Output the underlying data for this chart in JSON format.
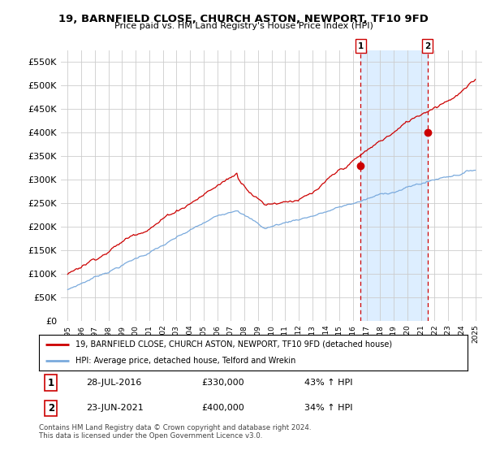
{
  "title": "19, BARNFIELD CLOSE, CHURCH ASTON, NEWPORT, TF10 9FD",
  "subtitle": "Price paid vs. HM Land Registry's House Price Index (HPI)",
  "ylabel_ticks": [
    "£0",
    "£50K",
    "£100K",
    "£150K",
    "£200K",
    "£250K",
    "£300K",
    "£350K",
    "£400K",
    "£450K",
    "£500K",
    "£550K"
  ],
  "ylabel_values": [
    0,
    50000,
    100000,
    150000,
    200000,
    250000,
    300000,
    350000,
    400000,
    450000,
    500000,
    550000
  ],
  "ylim": [
    0,
    575000
  ],
  "xlim_start": 1994.5,
  "xlim_end": 2025.5,
  "sale1_x": 2016.57,
  "sale1_y": 330000,
  "sale1_label": "1",
  "sale2_x": 2021.47,
  "sale2_y": 400000,
  "sale2_label": "2",
  "red_color": "#cc0000",
  "blue_color": "#7aaadd",
  "dashed_color": "#cc0000",
  "bg_color": "#ffffff",
  "shade_color": "#ddeeff",
  "grid_color": "#cccccc",
  "legend_line1": "19, BARNFIELD CLOSE, CHURCH ASTON, NEWPORT, TF10 9FD (detached house)",
  "legend_line2": "HPI: Average price, detached house, Telford and Wrekin",
  "annot1_num": "1",
  "annot1_date": "28-JUL-2016",
  "annot1_price": "£330,000",
  "annot1_hpi": "43% ↑ HPI",
  "annot2_num": "2",
  "annot2_date": "23-JUN-2021",
  "annot2_price": "£400,000",
  "annot2_hpi": "34% ↑ HPI",
  "footer": "Contains HM Land Registry data © Crown copyright and database right 2024.\nThis data is licensed under the Open Government Licence v3.0."
}
